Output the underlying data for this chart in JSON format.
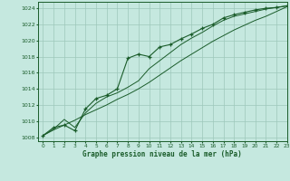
{
  "title": "Graphe pression niveau de la mer (hPa)",
  "background_color": "#c5e8df",
  "grid_color": "#9dc8bb",
  "line_color": "#1a5c2a",
  "xlim": [
    -0.5,
    23
  ],
  "ylim": [
    1007.5,
    1024.8
  ],
  "yticks": [
    1008,
    1010,
    1012,
    1014,
    1016,
    1018,
    1020,
    1022,
    1024
  ],
  "xticks": [
    0,
    1,
    2,
    3,
    4,
    5,
    6,
    7,
    8,
    9,
    10,
    11,
    12,
    13,
    14,
    15,
    16,
    17,
    18,
    19,
    20,
    21,
    22,
    23
  ],
  "hours": [
    0,
    1,
    2,
    3,
    4,
    5,
    6,
    7,
    8,
    9,
    10,
    11,
    12,
    13,
    14,
    15,
    16,
    17,
    18,
    19,
    20,
    21,
    22,
    23
  ],
  "pressure_main": [
    1008.2,
    1009.2,
    1009.5,
    1008.8,
    1011.5,
    1012.8,
    1013.2,
    1014.0,
    1017.8,
    1018.3,
    1018.0,
    1019.2,
    1019.5,
    1020.2,
    1020.8,
    1021.5,
    1022.0,
    1022.8,
    1023.2,
    1023.5,
    1023.8,
    1024.0,
    1024.1,
    1024.3
  ],
  "pressure_line2": [
    1008.2,
    1009.0,
    1010.2,
    1009.2,
    1011.0,
    1012.2,
    1013.0,
    1013.5,
    1014.2,
    1015.0,
    1016.5,
    1017.5,
    1018.5,
    1019.5,
    1020.3,
    1021.0,
    1021.8,
    1022.5,
    1023.0,
    1023.3,
    1023.6,
    1023.9,
    1024.1,
    1024.3
  ],
  "pressure_smooth": [
    1008.2,
    1008.9,
    1009.5,
    1010.1,
    1010.8,
    1011.4,
    1012.0,
    1012.7,
    1013.3,
    1014.0,
    1014.8,
    1015.7,
    1016.6,
    1017.5,
    1018.3,
    1019.1,
    1019.9,
    1020.6,
    1021.3,
    1021.9,
    1022.5,
    1023.0,
    1023.6,
    1024.2
  ]
}
